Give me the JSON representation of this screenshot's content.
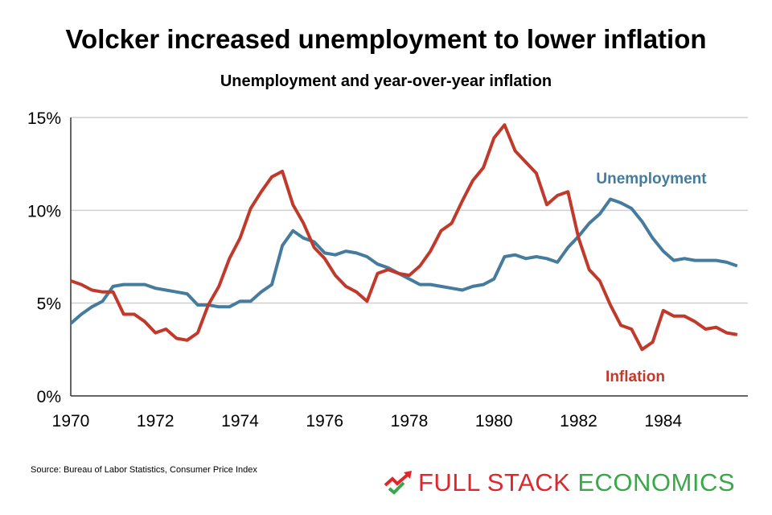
{
  "title": "Volcker increased unemployment to lower inflation",
  "subtitle": "Unemployment and year-over-year inflation",
  "source": "Source: Bureau of Labor Statistics, Consumer Price Index",
  "logo": {
    "word1": "FULL STACK",
    "word2": "ECONOMICS",
    "colors": {
      "red": "#e0262b",
      "green": "#3aa74a"
    },
    "icon": "trend-arrow-check-icon"
  },
  "chart_data": {
    "type": "line",
    "title": "Unemployment and year-over-year inflation",
    "xlim": [
      1970,
      1986
    ],
    "ylim": [
      0,
      15
    ],
    "x_ticks": [
      "1970",
      "1972",
      "1974",
      "1976",
      "1978",
      "1980",
      "1982",
      "1984"
    ],
    "y_ticks": [
      "0%",
      "5%",
      "10%",
      "15%"
    ],
    "grid": "horizontal",
    "x_start": 1970,
    "x_step": 0.25,
    "series": [
      {
        "name": "Unemployment",
        "color": "#457b9d",
        "values": [
          3.9,
          4.4,
          4.8,
          5.1,
          5.9,
          6.0,
          6.0,
          6.0,
          5.8,
          5.7,
          5.6,
          5.5,
          4.9,
          4.9,
          4.8,
          4.8,
          5.1,
          5.1,
          5.6,
          6.0,
          8.1,
          8.9,
          8.5,
          8.3,
          7.7,
          7.6,
          7.8,
          7.7,
          7.5,
          7.1,
          6.9,
          6.6,
          6.3,
          6.0,
          6.0,
          5.9,
          5.8,
          5.7,
          5.9,
          6.0,
          6.3,
          7.5,
          7.6,
          7.4,
          7.5,
          7.4,
          7.2,
          8.0,
          8.6,
          9.3,
          9.8,
          10.6,
          10.4,
          10.1,
          9.4,
          8.5,
          7.8,
          7.3,
          7.4,
          7.3,
          7.3,
          7.3,
          7.2,
          7.0
        ]
      },
      {
        "name": "Inflation",
        "color": "#c0392b",
        "values": [
          6.2,
          6.0,
          5.7,
          5.6,
          5.6,
          4.4,
          4.4,
          4.0,
          3.4,
          3.6,
          3.1,
          3.0,
          3.4,
          4.9,
          5.9,
          7.4,
          8.5,
          10.1,
          11.0,
          11.8,
          12.1,
          10.3,
          9.3,
          8.0,
          7.4,
          6.5,
          5.9,
          5.6,
          5.1,
          6.6,
          6.8,
          6.6,
          6.5,
          7.0,
          7.8,
          8.9,
          9.3,
          10.5,
          11.6,
          12.3,
          13.9,
          14.6,
          13.2,
          12.6,
          12.0,
          10.3,
          10.8,
          11.0,
          8.5,
          6.8,
          6.2,
          4.9,
          3.8,
          3.6,
          2.5,
          2.9,
          4.6,
          4.3,
          4.3,
          4.0,
          3.6,
          3.7,
          3.4,
          3.3
        ]
      }
    ]
  }
}
